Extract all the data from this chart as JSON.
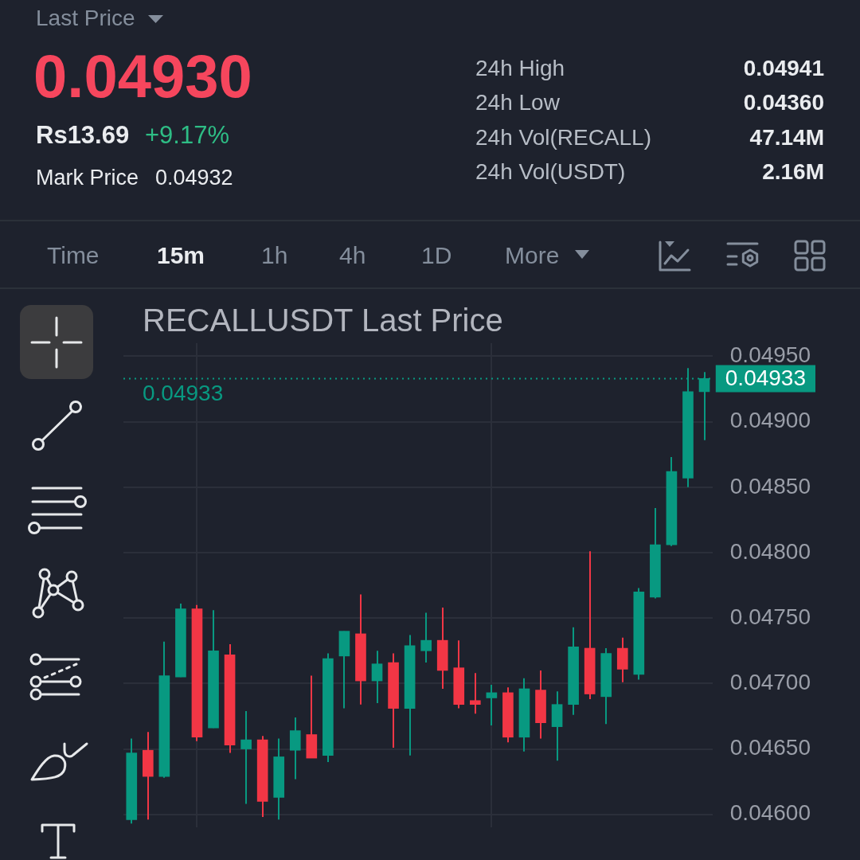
{
  "chart_data": {
    "type": "candlestick",
    "title": "RECALLUSDT Last Price",
    "categories": [
      null,
      null,
      null,
      null,
      null,
      null,
      null,
      null,
      null,
      null,
      null,
      null,
      null,
      null,
      null,
      null,
      null,
      null,
      null,
      null,
      null,
      null,
      null,
      null,
      null,
      null,
      null,
      null,
      null,
      null,
      null,
      null,
      null,
      null,
      null,
      null
    ],
    "ohlc": [
      [
        0.04596,
        0.04658,
        0.04593,
        0.04647
      ],
      [
        0.04649,
        0.04663,
        0.04596,
        0.04629
      ],
      [
        0.04629,
        0.04732,
        0.04628,
        0.04706
      ],
      [
        0.04705,
        0.04761,
        0.04705,
        0.04757
      ],
      [
        0.04757,
        0.0476,
        0.04656,
        0.04659
      ],
      [
        0.04666,
        0.04756,
        0.04666,
        0.04725
      ],
      [
        0.04722,
        0.0473,
        0.04647,
        0.04653
      ],
      [
        0.0465,
        0.04679,
        0.04608,
        0.04657
      ],
      [
        0.04657,
        0.0466,
        0.04598,
        0.0461
      ],
      [
        0.04613,
        0.04658,
        0.04596,
        0.04644
      ],
      [
        0.04649,
        0.04674,
        0.04627,
        0.04664
      ],
      [
        0.04661,
        0.04706,
        0.04643,
        0.04643
      ],
      [
        0.04645,
        0.04723,
        0.0464,
        0.04719
      ],
      [
        0.04721,
        0.0474,
        0.04681,
        0.0474
      ],
      [
        0.04738,
        0.04768,
        0.04684,
        0.04702
      ],
      [
        0.04702,
        0.04725,
        0.04685,
        0.04715
      ],
      [
        0.04716,
        0.04723,
        0.04651,
        0.04681
      ],
      [
        0.04681,
        0.04737,
        0.04645,
        0.04729
      ],
      [
        0.04725,
        0.04754,
        0.04716,
        0.04733
      ],
      [
        0.04733,
        0.04758,
        0.04696,
        0.0471
      ],
      [
        0.04712,
        0.04733,
        0.04681,
        0.04684
      ],
      [
        0.04687,
        0.04708,
        0.04677,
        0.04684
      ],
      [
        0.04689,
        0.04699,
        0.04668,
        0.04693
      ],
      [
        0.04693,
        0.04697,
        0.04655,
        0.04659
      ],
      [
        0.04659,
        0.04704,
        0.04648,
        0.04696
      ],
      [
        0.04695,
        0.0471,
        0.04658,
        0.0467
      ],
      [
        0.04667,
        0.04694,
        0.04641,
        0.04684
      ],
      [
        0.04684,
        0.04743,
        0.04676,
        0.04728
      ],
      [
        0.04727,
        0.04801,
        0.04688,
        0.04692
      ],
      [
        0.0469,
        0.04727,
        0.04669,
        0.04723
      ],
      [
        0.04727,
        0.04735,
        0.04701,
        0.04711
      ],
      [
        0.04707,
        0.04773,
        0.04703,
        0.0477
      ],
      [
        0.04766,
        0.04834,
        0.04765,
        0.04806
      ],
      [
        0.04806,
        0.04873,
        0.04805,
        0.04862
      ],
      [
        0.04857,
        0.04941,
        0.0485,
        0.04923
      ],
      [
        0.04923,
        0.04938,
        0.04886,
        0.04933
      ]
    ],
    "colors": [
      "#089981",
      "#f23645",
      "#089981",
      "#089981",
      "#f23645",
      "#089981",
      "#f23645",
      "#089981",
      "#f23645",
      "#089981",
      "#089981",
      "#f23645",
      "#089981",
      "#089981",
      "#f23645",
      "#089981",
      "#f23645",
      "#089981",
      "#089981",
      "#f23645",
      "#f23645",
      "#f23645",
      "#089981",
      "#f23645",
      "#089981",
      "#f23645",
      "#089981",
      "#089981",
      "#f23645",
      "#089981",
      "#f23645",
      "#089981",
      "#089981",
      "#089981",
      "#089981",
      "#089981"
    ],
    "ylim": [
      0.0459,
      0.0496
    ],
    "yticks": [
      {
        "value": 0.046,
        "label": "0.04600"
      },
      {
        "value": 0.0465,
        "label": "0.04650"
      },
      {
        "value": 0.047,
        "label": "0.04700"
      },
      {
        "value": 0.0475,
        "label": "0.04750"
      },
      {
        "value": 0.048,
        "label": "0.04800"
      },
      {
        "value": 0.0485,
        "label": "0.04850"
      },
      {
        "value": 0.049,
        "label": "0.04900"
      },
      {
        "value": 0.0495,
        "label": "0.04950"
      }
    ],
    "tick_labels": "y",
    "grid": true,
    "ref_lines": [
      {
        "axis": "y",
        "value": 0.04933,
        "label": "0.04933",
        "color": "#089981",
        "line_style": "dotted"
      }
    ],
    "annotations": [
      "Last Price",
      "0.04930",
      "Rs13.69",
      "+9.17%",
      "Mark Price",
      "0.04932",
      "24h High",
      "0.04941",
      "24h Low",
      "0.04360",
      "24h Vol(RECALL)",
      "47.14M",
      "24h Vol(USDT)",
      "2.16M",
      "Time",
      "15m",
      "1h",
      "4h",
      "1D",
      "More"
    ]
  }
}
